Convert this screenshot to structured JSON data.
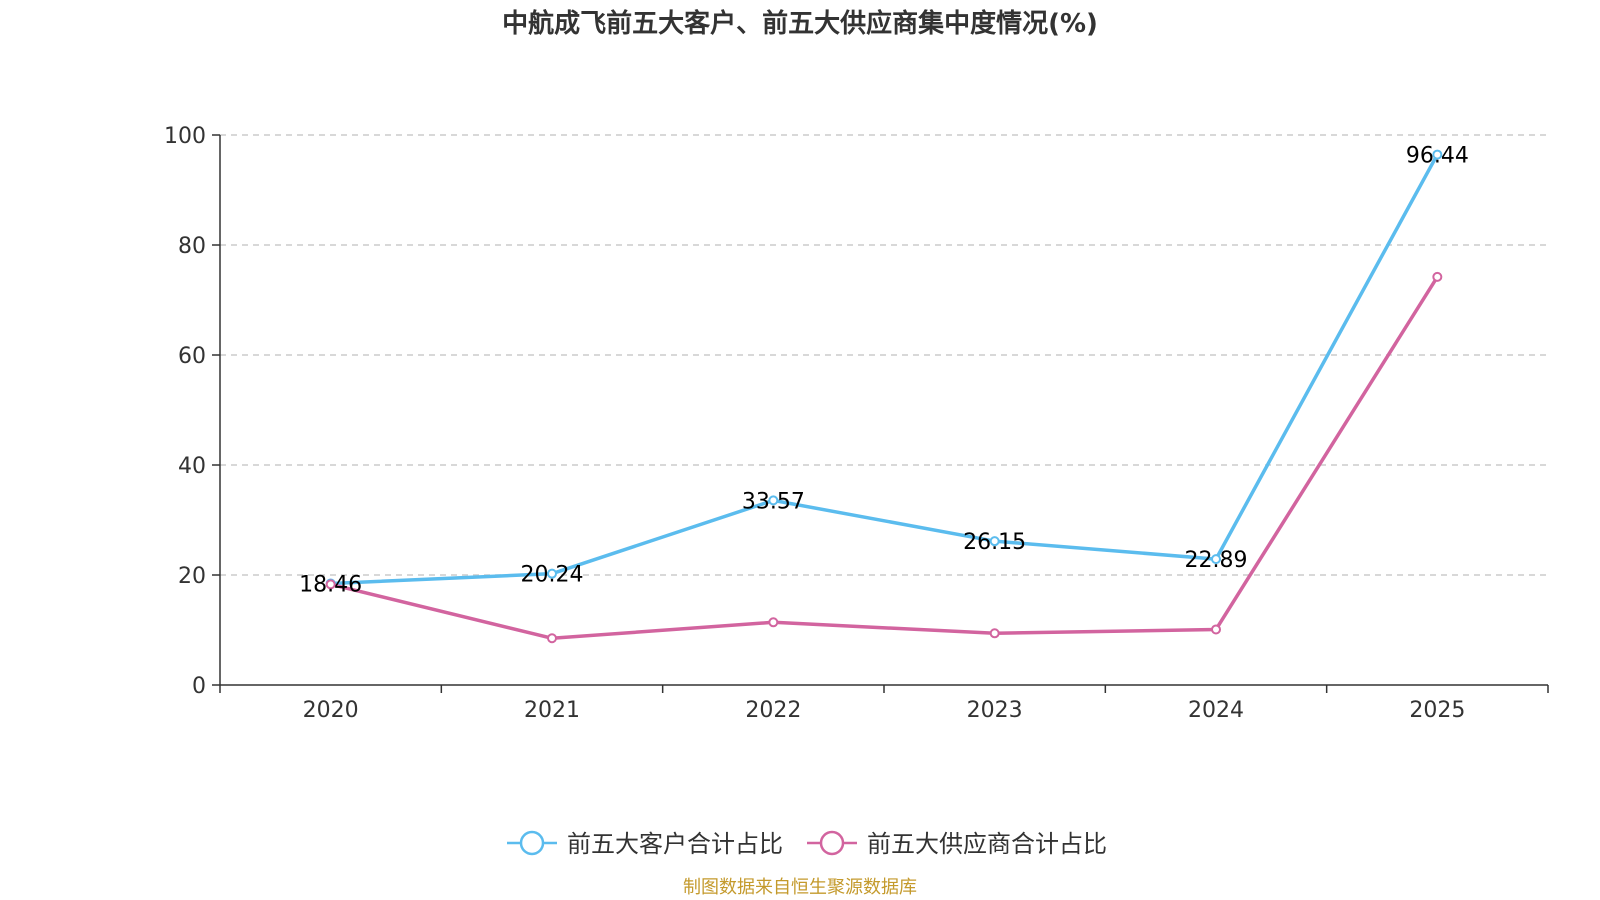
{
  "chart_data": {
    "type": "line",
    "title": "中航成飞前五大客户、前五大供应商集中度情况(%)",
    "categories": [
      "2020",
      "2021",
      "2022",
      "2023",
      "2024",
      "2025"
    ],
    "ylim": [
      0,
      100
    ],
    "yticks": [
      0,
      20,
      40,
      60,
      80,
      100
    ],
    "grid": true,
    "legend_position": "bottom-center",
    "series": [
      {
        "name": "前五大客户合计占比",
        "color": "#5bbcee",
        "values": [
          18.46,
          20.24,
          33.57,
          26.15,
          22.89,
          96.44
        ],
        "labels": [
          "18.46",
          "20.24",
          "33.57",
          "26.15",
          "22.89",
          "96.44"
        ]
      },
      {
        "name": "前五大供应商合计占比",
        "color": "#d2649f",
        "values": [
          18.3,
          8.5,
          11.4,
          9.4,
          10.1,
          74.2
        ],
        "labels": null
      }
    ]
  },
  "source": "制图数据来自恒生聚源数据库"
}
